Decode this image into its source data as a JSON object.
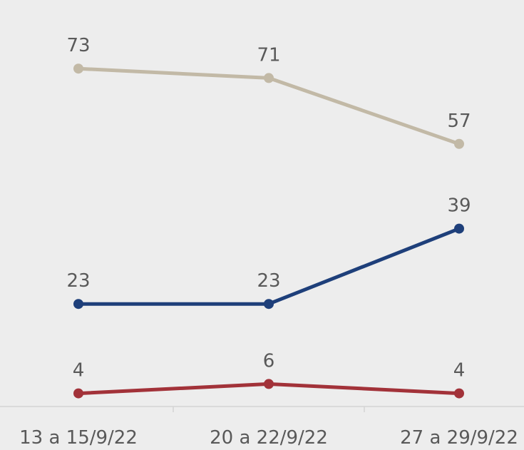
{
  "chart_data": {
    "type": "line",
    "categories": [
      "13 a 15/9/22",
      "20 a 22/9/22",
      "27 a 29/9/22"
    ],
    "series": [
      {
        "values": [
          73,
          71,
          57
        ],
        "color": "#c2b9a6"
      },
      {
        "values": [
          23,
          23,
          39
        ],
        "color": "#1e3f7a"
      },
      {
        "values": [
          4,
          6,
          4
        ],
        "color": "#a23239"
      }
    ],
    "ylim": [
      0,
      80
    ],
    "grid": false,
    "legend": "none",
    "colors": {
      "background": "#ededed",
      "axis": "#d4d4d4",
      "text": "#595959"
    }
  }
}
